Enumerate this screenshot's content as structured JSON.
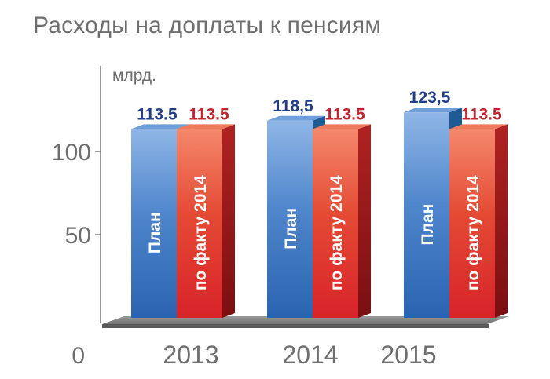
{
  "title": "Расходы на доплаты к пенсиям",
  "colors": {
    "plan": "#4f86cc",
    "plan_dark": "#1e5a94",
    "fact": "#e03a2c",
    "fact_dark": "#8a1414",
    "plan_label": "#1f3d8a",
    "fact_label": "#c0242c",
    "axis_text": "#6e6e6e"
  },
  "chart_data": {
    "type": "bar",
    "title": "Расходы на доплаты к пенсиям",
    "unit_label": "млрд.",
    "xlabel": "",
    "ylabel": "",
    "categories": [
      "2013",
      "2014",
      "2015"
    ],
    "series": [
      {
        "name": "План",
        "values": [
          113.5,
          118.5,
          123.5
        ],
        "labels": [
          "113.5",
          "118,5",
          "123,5"
        ]
      },
      {
        "name": "по факту 2014",
        "values": [
          113.5,
          113.5,
          113.5
        ],
        "labels": [
          "113.5",
          "113.5",
          "113.5"
        ]
      }
    ],
    "y_ticks": [
      {
        "value": 0,
        "label": "0"
      },
      {
        "value": 50,
        "label": "50"
      },
      {
        "value": 100,
        "label": "100"
      }
    ],
    "ylim": [
      0,
      130
    ],
    "grid": false,
    "legend": "none"
  }
}
